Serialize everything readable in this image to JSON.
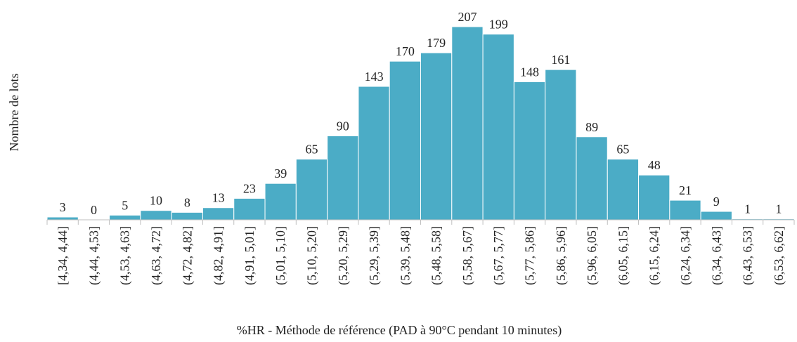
{
  "chart_data": {
    "type": "bar",
    "x_label": "%HR - Méthode de référence (PAD à 90°C pendant 10 minutes)",
    "y_label": "Nombre de lots",
    "color": "#4bacc6",
    "categories": [
      "[4,34, 4,44]",
      "(4,44, 4,53]",
      "(4,53, 4,63]",
      "(4,63, 4,72]",
      "(4,72, 4,82]",
      "(4,82, 4,91]",
      "(4,91, 5,01]",
      "(5,01, 5,10]",
      "(5,10, 5,20]",
      "(5,20, 5,29]",
      "(5,29, 5,39]",
      "(5,39, 5,48]",
      "(5,48, 5,58]",
      "(5,58, 5,67]",
      "(5,67, 5,77]",
      "(5,77, 5,86]",
      "(5,86, 5,96]",
      "(5,96, 6,05]",
      "(6,05, 6,15]",
      "(6,15, 6,24]",
      "(6,24, 6,34]",
      "(6,34, 6,43]",
      "(6,43, 6,53]",
      "(6,53, 6,62]"
    ],
    "values": [
      3,
      0,
      5,
      10,
      8,
      13,
      23,
      39,
      65,
      90,
      143,
      170,
      179,
      207,
      199,
      148,
      161,
      89,
      65,
      48,
      21,
      9,
      1,
      1
    ]
  }
}
